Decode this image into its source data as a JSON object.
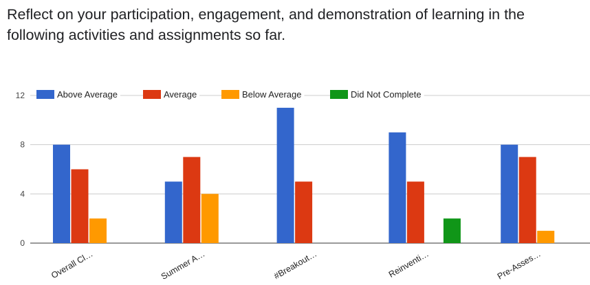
{
  "question": "Reflect on your participation, engagement, and demonstration of learning in the following activities and assignments so far.",
  "chart_data": {
    "type": "bar",
    "categories": [
      "Overall Cl…",
      "Summer A…",
      "#Breakout…",
      "Reinventi…",
      "Pre-Asses…"
    ],
    "series": [
      {
        "name": "Above Average",
        "color": "#3366cc",
        "values": [
          8,
          5,
          11,
          9,
          8
        ]
      },
      {
        "name": "Average",
        "color": "#dc3912",
        "values": [
          6,
          7,
          5,
          5,
          7
        ]
      },
      {
        "name": "Below Average",
        "color": "#ff9900",
        "values": [
          2,
          4,
          0,
          0,
          1
        ]
      },
      {
        "name": "Did Not Complete",
        "color": "#109618",
        "values": [
          0,
          0,
          0,
          2,
          0
        ]
      }
    ],
    "yticks": [
      0,
      4,
      8,
      12
    ],
    "ylim": [
      0,
      12
    ],
    "legend": "top",
    "grid": true
  }
}
